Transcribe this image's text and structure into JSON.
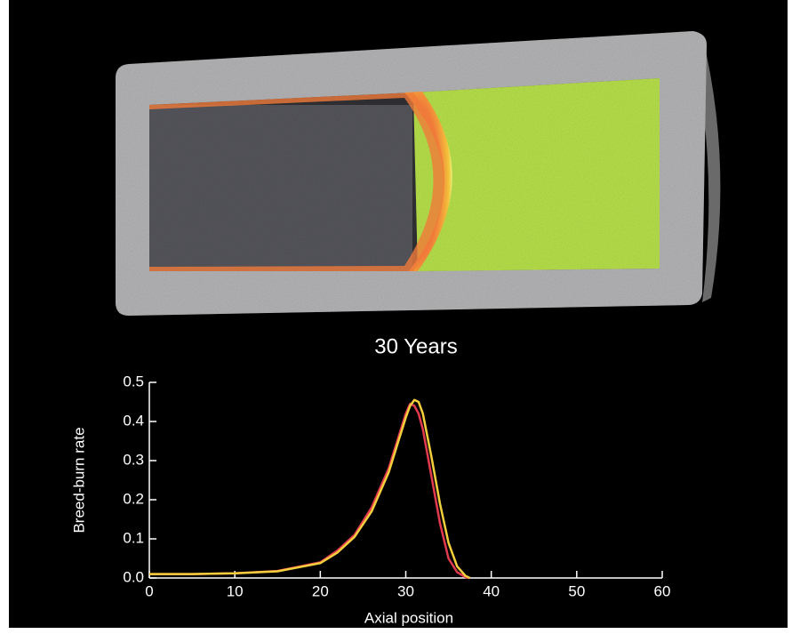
{
  "chart_data": {
    "type": "line",
    "title": "30 Years",
    "xlabel": "Axial position",
    "ylabel": "Breed-burn rate",
    "x": [
      0,
      5,
      10,
      15,
      20,
      22,
      24,
      26,
      28,
      29,
      30,
      30.5,
      31,
      31.5,
      32,
      33,
      34,
      35,
      36,
      37,
      37.5
    ],
    "series": [
      {
        "color": "#e23a4e",
        "values": [
          0.01,
          0.01,
          0.012,
          0.018,
          0.04,
          0.07,
          0.11,
          0.18,
          0.28,
          0.35,
          0.42,
          0.445,
          0.44,
          0.42,
          0.38,
          0.26,
          0.14,
          0.05,
          0.015,
          0.002,
          0
        ]
      },
      {
        "color": "#f4cf3c",
        "values": [
          0.01,
          0.01,
          0.012,
          0.017,
          0.038,
          0.065,
          0.105,
          0.17,
          0.27,
          0.34,
          0.41,
          0.44,
          0.455,
          0.45,
          0.42,
          0.31,
          0.19,
          0.09,
          0.03,
          0.005,
          0
        ]
      }
    ],
    "xlim": [
      0,
      60
    ],
    "xticks": [
      0,
      10,
      20,
      30,
      40,
      50,
      60
    ],
    "ylim": [
      0,
      0.5
    ],
    "yticks": [
      {
        "value": 0,
        "label": "0.0"
      },
      0.1,
      0.2,
      0.3,
      0.4,
      0.5
    ],
    "grid": false
  }
}
